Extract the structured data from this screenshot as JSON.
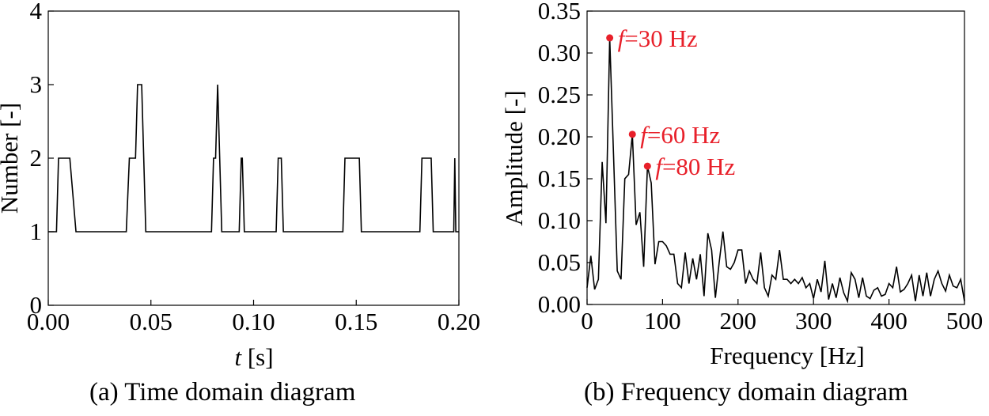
{
  "captions": {
    "a": "(a) Time domain diagram",
    "b": "(b) Frequency domain diagram"
  },
  "chart_data": [
    {
      "id": "time-domain",
      "type": "line",
      "title": "",
      "xlabel_var": "t",
      "xlabel_unit": " [s]",
      "ylabel": "Number [-]",
      "xlim": [
        0,
        0.2
      ],
      "ylim": [
        0,
        4
      ],
      "xticks": [
        0,
        0.05,
        0.1,
        0.15,
        0.2
      ],
      "xtick_labels": [
        "0.00",
        "0.05",
        "0.10",
        "0.15",
        "0.20"
      ],
      "yticks": [
        0,
        1,
        2,
        3,
        4
      ],
      "ytick_labels": [
        "0",
        "1",
        "2",
        "3",
        "4"
      ],
      "color": "#000000",
      "x": [
        0,
        0.004,
        0.005,
        0.0095,
        0.0105,
        0.0135,
        0.038,
        0.0395,
        0.0425,
        0.0435,
        0.0455,
        0.0465,
        0.0475,
        0.0795,
        0.0805,
        0.0815,
        0.0825,
        0.0835,
        0.0845,
        0.093,
        0.094,
        0.0945,
        0.0955,
        0.0965,
        0.111,
        0.112,
        0.1135,
        0.1145,
        0.1155,
        0.1435,
        0.1445,
        0.1505,
        0.1515,
        0.1525,
        0.181,
        0.182,
        0.1855,
        0.1865,
        0.1875,
        0.1975,
        0.198,
        0.1985,
        0.199,
        0.2
      ],
      "y": [
        1,
        1,
        2,
        2,
        2,
        1,
        1,
        2,
        2,
        3,
        3,
        2,
        1,
        1,
        2,
        2,
        3,
        2,
        1,
        1,
        2,
        2,
        1,
        1,
        1,
        2,
        2,
        1,
        1,
        1,
        2,
        2,
        2,
        1,
        1,
        2,
        2,
        2,
        1,
        1,
        2,
        1,
        1,
        1
      ]
    },
    {
      "id": "frequency-domain",
      "type": "line",
      "title": "",
      "xlabel": "Frequency [Hz]",
      "ylabel": "Amplitude [-]",
      "xlim": [
        0,
        500
      ],
      "ylim": [
        0,
        0.35
      ],
      "xticks": [
        0,
        100,
        200,
        300,
        400,
        500
      ],
      "xtick_labels": [
        "0",
        "100",
        "200",
        "300",
        "400",
        "500"
      ],
      "yticks": [
        0,
        0.05,
        0.1,
        0.15,
        0.2,
        0.25,
        0.3,
        0.35
      ],
      "ytick_labels": [
        "0.00",
        "0.05",
        "0.10",
        "0.15",
        "0.20",
        "0.25",
        "0.30",
        "0.35"
      ],
      "color": "#000000",
      "x": [
        0,
        5,
        10,
        15,
        20,
        25,
        30,
        35,
        40,
        45,
        50,
        55,
        60,
        65,
        70,
        75,
        80,
        85,
        90,
        95,
        100,
        105,
        110,
        115,
        120,
        125,
        130,
        135,
        140,
        145,
        150,
        155,
        160,
        165,
        170,
        175,
        180,
        185,
        190,
        195,
        200,
        205,
        210,
        215,
        220,
        225,
        230,
        235,
        240,
        245,
        250,
        255,
        260,
        265,
        270,
        275,
        280,
        285,
        290,
        295,
        300,
        305,
        310,
        315,
        320,
        325,
        330,
        335,
        340,
        345,
        350,
        355,
        360,
        365,
        370,
        375,
        380,
        385,
        390,
        395,
        400,
        405,
        410,
        415,
        420,
        425,
        430,
        435,
        440,
        445,
        450,
        455,
        460,
        465,
        470,
        475,
        480,
        485,
        490,
        495,
        500
      ],
      "y": [
        0.02,
        0.058,
        0.018,
        0.03,
        0.17,
        0.097,
        0.318,
        0.18,
        0.04,
        0.03,
        0.15,
        0.155,
        0.203,
        0.095,
        0.11,
        0.045,
        0.165,
        0.145,
        0.048,
        0.075,
        0.075,
        0.07,
        0.06,
        0.06,
        0.025,
        0.02,
        0.062,
        0.025,
        0.055,
        0.03,
        0.06,
        0.01,
        0.085,
        0.065,
        0.008,
        0.05,
        0.087,
        0.045,
        0.042,
        0.05,
        0.065,
        0.065,
        0.025,
        0.04,
        0.03,
        0.025,
        0.062,
        0.02,
        0.01,
        0.035,
        0.03,
        0.065,
        0.03,
        0.03,
        0.025,
        0.03,
        0.025,
        0.032,
        0.02,
        0.025,
        0.007,
        0.03,
        0.015,
        0.052,
        0.006,
        0.025,
        0.008,
        0.032,
        0.014,
        0.004,
        0.038,
        0.03,
        0.008,
        0.032,
        0.01,
        0.007,
        0.017,
        0.02,
        0.01,
        0.012,
        0.025,
        0.02,
        0.045,
        0.015,
        0.018,
        0.025,
        0.035,
        0.004,
        0.035,
        0.01,
        0.038,
        0.01,
        0.03,
        0.04,
        0.025,
        0.016,
        0.035,
        0.022,
        0.02,
        0.03,
        0.004
      ],
      "annotations": [
        {
          "label_var": "f",
          "label_rest": "=30 Hz",
          "x": 30,
          "y": 0.318
        },
        {
          "label_var": "f",
          "label_rest": "=60 Hz",
          "x": 60,
          "y": 0.203
        },
        {
          "label_var": "f",
          "label_rest": "=80 Hz",
          "x": 80,
          "y": 0.165
        }
      ],
      "annotation_color": "#e8202a"
    }
  ]
}
